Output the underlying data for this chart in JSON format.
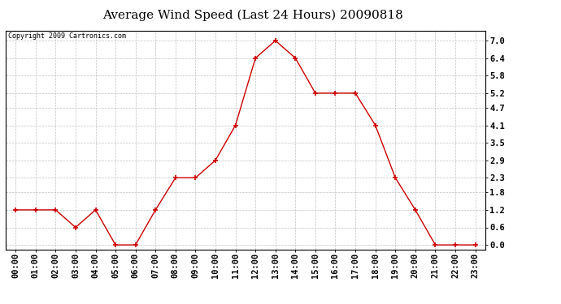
{
  "title": "Average Wind Speed (Last 24 Hours) 20090818",
  "copyright_text": "Copyright 2009 Cartronics.com",
  "hours": [
    "00:00",
    "01:00",
    "02:00",
    "03:00",
    "04:00",
    "05:00",
    "06:00",
    "07:00",
    "08:00",
    "09:00",
    "10:00",
    "11:00",
    "12:00",
    "13:00",
    "14:00",
    "15:00",
    "16:00",
    "17:00",
    "18:00",
    "19:00",
    "20:00",
    "21:00",
    "22:00",
    "23:00"
  ],
  "values": [
    1.2,
    1.2,
    1.2,
    0.6,
    1.2,
    0.0,
    0.0,
    1.2,
    2.3,
    2.3,
    2.9,
    4.1,
    6.4,
    7.0,
    6.4,
    5.2,
    5.2,
    5.2,
    4.1,
    2.3,
    1.2,
    0.0,
    0.0,
    0.0
  ],
  "line_color": "#cc0000",
  "marker_color": "#cc0000",
  "bg_color": "#ffffff",
  "plot_bg_color": "#ffffff",
  "grid_color": "#bbbbbb",
  "yticks": [
    0.0,
    0.6,
    1.2,
    1.8,
    2.3,
    2.9,
    3.5,
    4.1,
    4.7,
    5.2,
    5.8,
    6.4,
    7.0
  ],
  "ylim": [
    -0.15,
    7.35
  ],
  "title_fontsize": 11,
  "copyright_fontsize": 6,
  "tick_fontsize": 7.5
}
